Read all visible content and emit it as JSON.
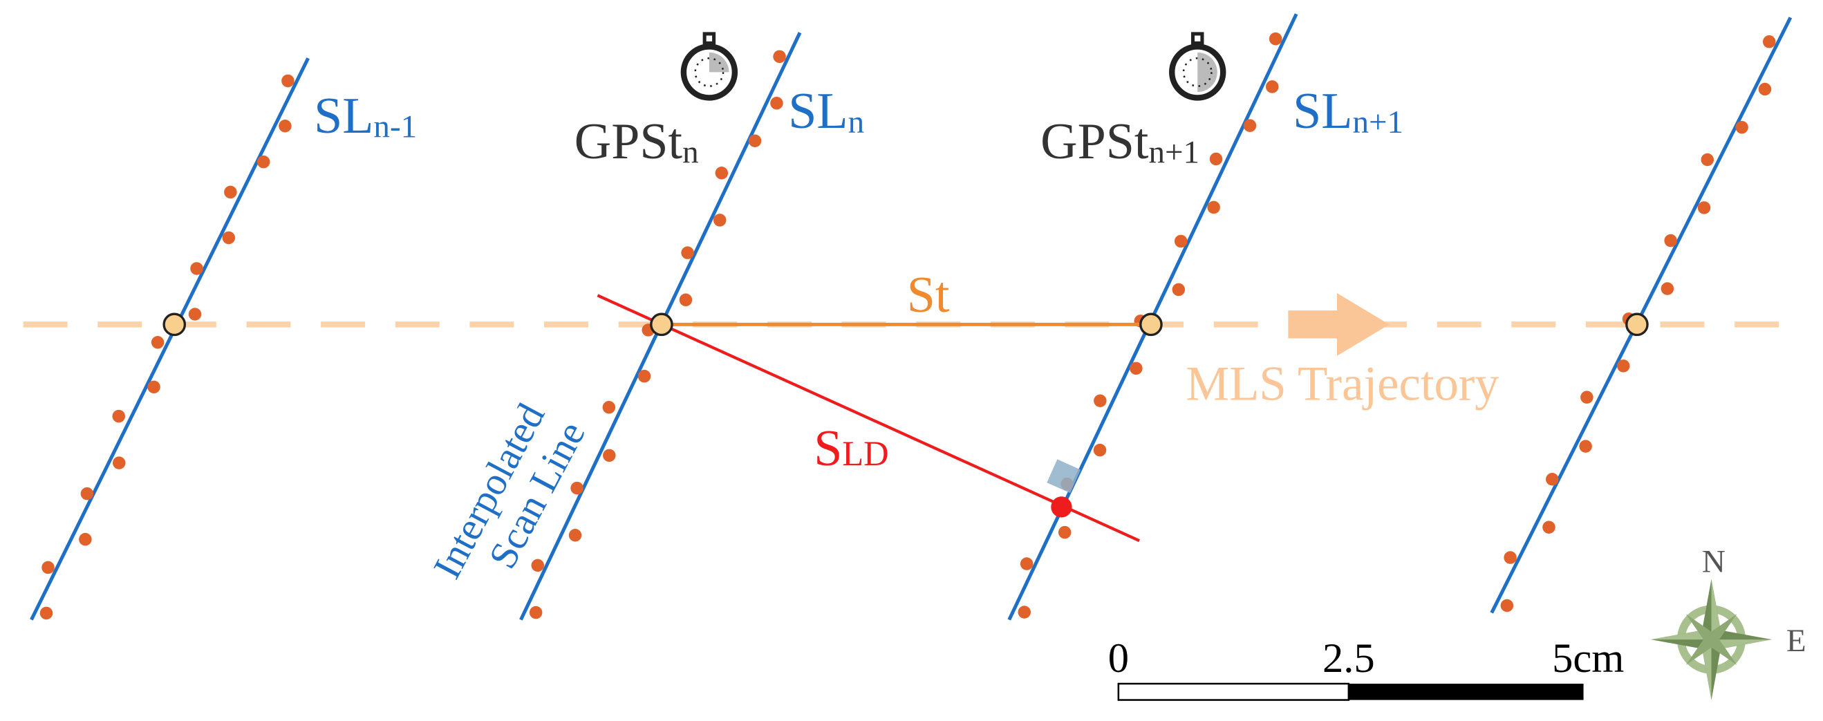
{
  "scan_lines": [
    {
      "label": "SL",
      "subscript": "n-1"
    },
    {
      "label": "SL",
      "subscript": "n"
    },
    {
      "label": "SL",
      "subscript": "n+1"
    }
  ],
  "gps_times": [
    {
      "label": "GPSt",
      "subscript": "n"
    },
    {
      "label": "GPSt",
      "subscript": "n+1"
    }
  ],
  "st_label": "St",
  "sld_label": {
    "label": "S",
    "subscript": "LD"
  },
  "trajectory_label": "MLS Trajectory",
  "interpolated_label": [
    "Interpolated",
    "Scan Line"
  ],
  "scale_bar": {
    "ticks": [
      "0",
      "2.5",
      "5cm"
    ]
  },
  "compass": {
    "north": "N",
    "east": "E"
  }
}
